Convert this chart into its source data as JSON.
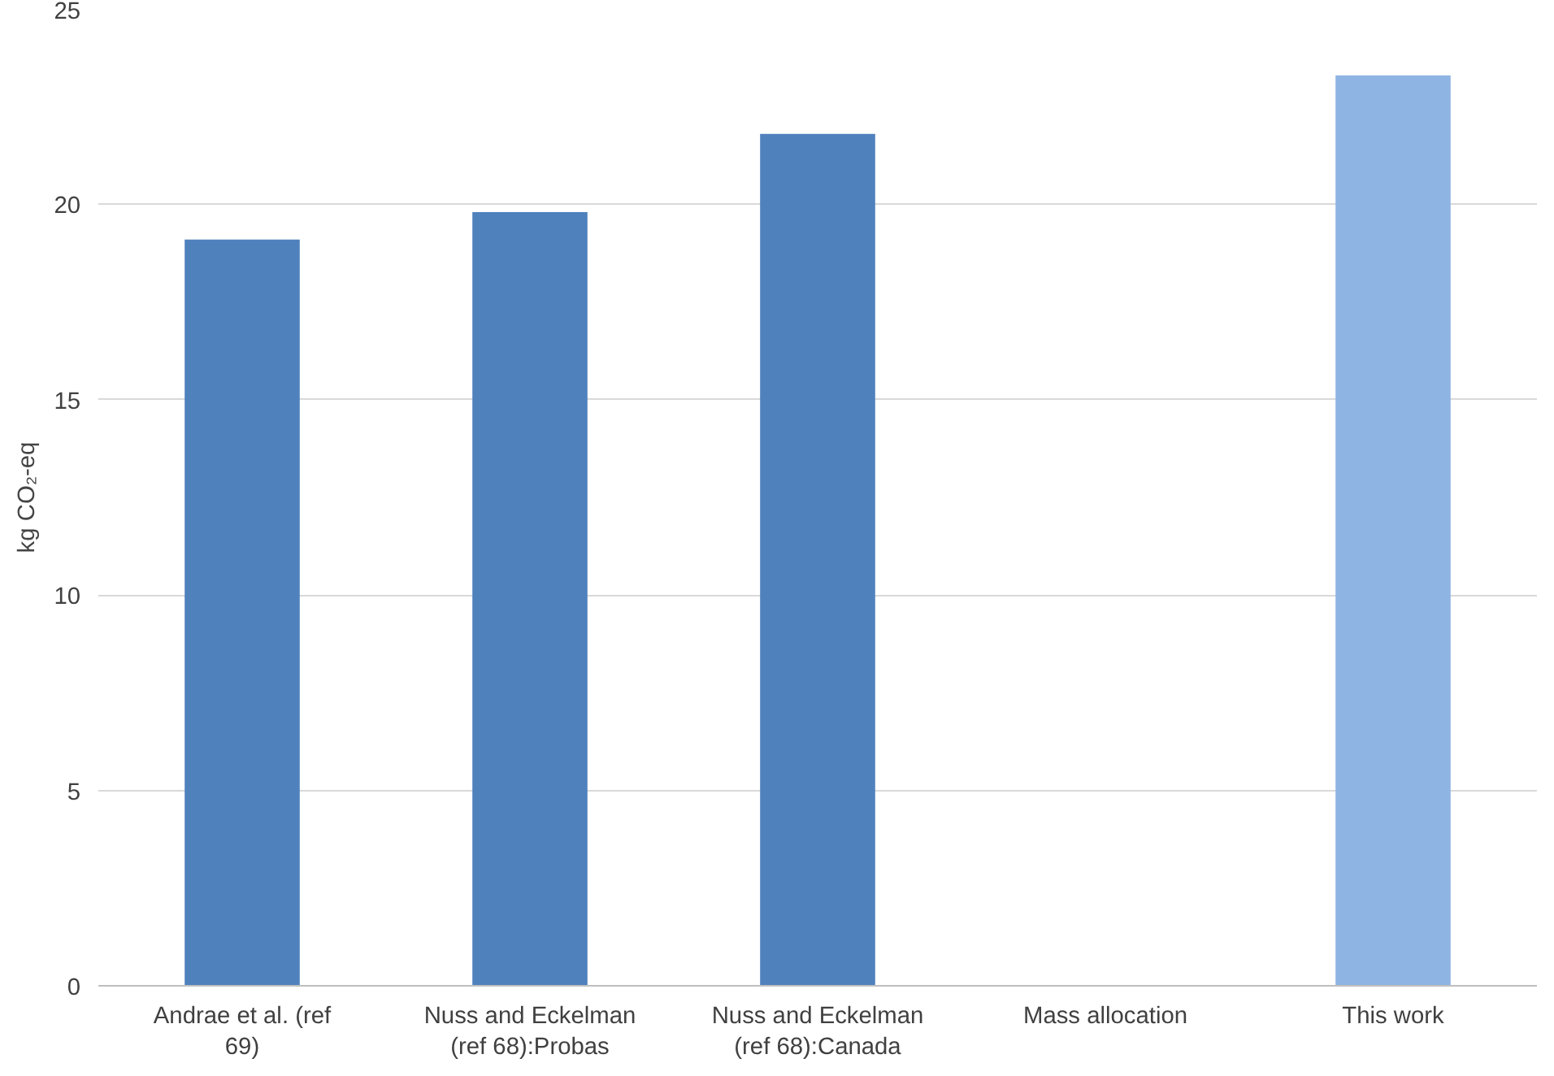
{
  "chart_data": {
    "type": "bar",
    "ylabel": "kg CO₂-eq",
    "categories": [
      "Andrae et al. (ref 69)",
      "Nuss and Eckelman (ref 68):Probas",
      "Nuss and Eckelman (ref 68):Canada",
      "Mass allocation",
      "This work"
    ],
    "values": [
      19.1,
      19.8,
      21.8,
      null,
      23.3
    ],
    "colors": [
      "#4f81bd",
      "#4f81bd",
      "#4f81bd",
      "#4f81bd",
      "#8eb4e3"
    ],
    "ylim": [
      0,
      25
    ],
    "yticks": [
      0,
      5,
      10,
      15,
      20,
      25
    ],
    "grid": "y"
  }
}
